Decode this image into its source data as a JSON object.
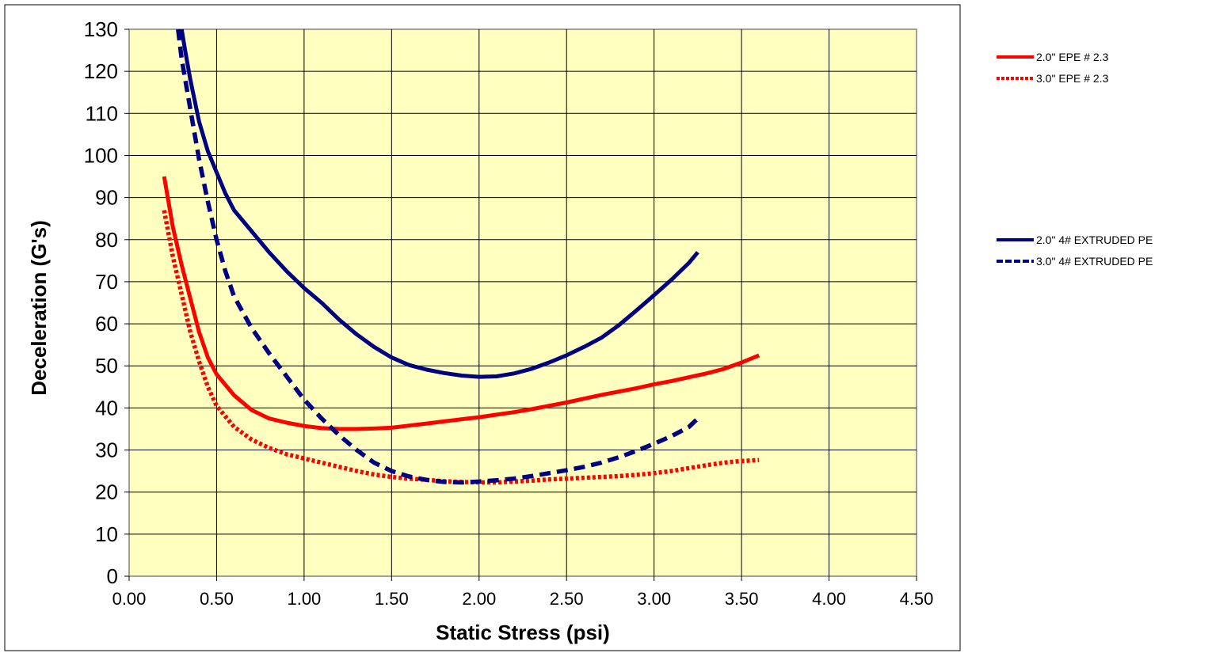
{
  "chart_data": {
    "type": "line",
    "title": "",
    "xlabel": "Static Stress (psi)",
    "ylabel": "Deceleration (G's)",
    "xlim": [
      0,
      4.5
    ],
    "ylim": [
      0,
      130
    ],
    "x_ticks": [
      "0.00",
      "0.50",
      "1.00",
      "1.50",
      "2.00",
      "2.50",
      "3.00",
      "3.50",
      "4.00",
      "4.50"
    ],
    "y_ticks": [
      "0",
      "10",
      "20",
      "30",
      "40",
      "50",
      "60",
      "70",
      "80",
      "90",
      "100",
      "110",
      "120",
      "130"
    ],
    "grid": true,
    "plot_background": "#ffffc0",
    "legend_position": "right",
    "series": [
      {
        "name": "2.0\" EPE # 2.3",
        "color": "#ff0000",
        "style": "solid",
        "points": [
          [
            0.2,
            95
          ],
          [
            0.25,
            83
          ],
          [
            0.3,
            74
          ],
          [
            0.35,
            66
          ],
          [
            0.4,
            58
          ],
          [
            0.45,
            52
          ],
          [
            0.5,
            48
          ],
          [
            0.6,
            43
          ],
          [
            0.7,
            39.5
          ],
          [
            0.8,
            37.5
          ],
          [
            0.9,
            36.5
          ],
          [
            1.0,
            35.7
          ],
          [
            1.1,
            35.2
          ],
          [
            1.2,
            35
          ],
          [
            1.3,
            35
          ],
          [
            1.4,
            35.1
          ],
          [
            1.5,
            35.3
          ],
          [
            1.6,
            35.8
          ],
          [
            1.7,
            36.3
          ],
          [
            1.8,
            36.8
          ],
          [
            1.9,
            37.3
          ],
          [
            2.0,
            37.8
          ],
          [
            2.1,
            38.4
          ],
          [
            2.2,
            39
          ],
          [
            2.3,
            39.7
          ],
          [
            2.4,
            40.5
          ],
          [
            2.5,
            41.3
          ],
          [
            2.6,
            42.2
          ],
          [
            2.7,
            43.1
          ],
          [
            2.8,
            43.9
          ],
          [
            2.9,
            44.7
          ],
          [
            3.0,
            45.6
          ],
          [
            3.1,
            46.4
          ],
          [
            3.2,
            47.3
          ],
          [
            3.3,
            48.2
          ],
          [
            3.4,
            49.3
          ],
          [
            3.5,
            50.8
          ],
          [
            3.6,
            52.5
          ]
        ]
      },
      {
        "name": "3.0\" EPE # 2.3",
        "color": "#ff0000",
        "style": "dotted",
        "points": [
          [
            0.2,
            87
          ],
          [
            0.25,
            76
          ],
          [
            0.3,
            67
          ],
          [
            0.35,
            58
          ],
          [
            0.4,
            51
          ],
          [
            0.45,
            45
          ],
          [
            0.5,
            40.5
          ],
          [
            0.6,
            35.5
          ],
          [
            0.7,
            32.5
          ],
          [
            0.8,
            30.5
          ],
          [
            0.9,
            29
          ],
          [
            1.0,
            28
          ],
          [
            1.1,
            27
          ],
          [
            1.2,
            26
          ],
          [
            1.3,
            25
          ],
          [
            1.4,
            24.2
          ],
          [
            1.5,
            23.6
          ],
          [
            1.6,
            23.2
          ],
          [
            1.7,
            22.9
          ],
          [
            1.8,
            22.6
          ],
          [
            1.9,
            22.4
          ],
          [
            2.0,
            22.3
          ],
          [
            2.1,
            22.3
          ],
          [
            2.2,
            22.5
          ],
          [
            2.3,
            22.7
          ],
          [
            2.4,
            23
          ],
          [
            2.5,
            23.2
          ],
          [
            2.6,
            23.4
          ],
          [
            2.7,
            23.6
          ],
          [
            2.8,
            23.8
          ],
          [
            2.9,
            24.1
          ],
          [
            3.0,
            24.5
          ],
          [
            3.1,
            25
          ],
          [
            3.2,
            25.7
          ],
          [
            3.3,
            26.4
          ],
          [
            3.4,
            27
          ],
          [
            3.5,
            27.4
          ],
          [
            3.6,
            27.6
          ]
        ]
      },
      {
        "name": "2.0\" 4# EXTRUDED PE",
        "color": "#000080",
        "style": "solid",
        "points": [
          [
            0.3,
            130
          ],
          [
            0.32,
            125
          ],
          [
            0.35,
            118
          ],
          [
            0.4,
            108
          ],
          [
            0.45,
            101
          ],
          [
            0.5,
            96
          ],
          [
            0.55,
            91
          ],
          [
            0.6,
            87
          ],
          [
            0.7,
            82
          ],
          [
            0.8,
            77
          ],
          [
            0.9,
            72.5
          ],
          [
            1.0,
            68.5
          ],
          [
            1.1,
            65
          ],
          [
            1.2,
            61
          ],
          [
            1.3,
            57.5
          ],
          [
            1.4,
            54.5
          ],
          [
            1.5,
            52
          ],
          [
            1.6,
            50.2
          ],
          [
            1.7,
            49.1
          ],
          [
            1.8,
            48.3
          ],
          [
            1.9,
            47.7
          ],
          [
            2.0,
            47.4
          ],
          [
            2.1,
            47.5
          ],
          [
            2.2,
            48.2
          ],
          [
            2.3,
            49.3
          ],
          [
            2.4,
            50.8
          ],
          [
            2.5,
            52.5
          ],
          [
            2.6,
            54.5
          ],
          [
            2.7,
            56.7
          ],
          [
            2.8,
            59.7
          ],
          [
            2.9,
            63.2
          ],
          [
            3.0,
            66.8
          ],
          [
            3.1,
            70.5
          ],
          [
            3.2,
            74.5
          ],
          [
            3.25,
            77
          ]
        ]
      },
      {
        "name": "3.0\" 4# EXTRUDED PE",
        "color": "#000080",
        "style": "dashed",
        "points": [
          [
            0.28,
            130
          ],
          [
            0.3,
            123
          ],
          [
            0.35,
            111
          ],
          [
            0.4,
            99
          ],
          [
            0.45,
            89
          ],
          [
            0.5,
            80
          ],
          [
            0.55,
            72.5
          ],
          [
            0.6,
            66.5
          ],
          [
            0.7,
            59
          ],
          [
            0.8,
            53
          ],
          [
            0.9,
            47.5
          ],
          [
            1.0,
            42
          ],
          [
            1.1,
            37.5
          ],
          [
            1.2,
            33.5
          ],
          [
            1.3,
            30
          ],
          [
            1.4,
            27
          ],
          [
            1.5,
            25
          ],
          [
            1.6,
            23.7
          ],
          [
            1.7,
            22.9
          ],
          [
            1.8,
            22.4
          ],
          [
            1.9,
            22.3
          ],
          [
            2.0,
            22.5
          ],
          [
            2.1,
            22.8
          ],
          [
            2.2,
            23.2
          ],
          [
            2.3,
            23.8
          ],
          [
            2.4,
            24.5
          ],
          [
            2.5,
            25.2
          ],
          [
            2.6,
            26
          ],
          [
            2.7,
            27
          ],
          [
            2.8,
            28.3
          ],
          [
            2.9,
            29.8
          ],
          [
            3.0,
            31.5
          ],
          [
            3.1,
            33.3
          ],
          [
            3.2,
            35.5
          ],
          [
            3.25,
            37.5
          ]
        ]
      }
    ]
  }
}
